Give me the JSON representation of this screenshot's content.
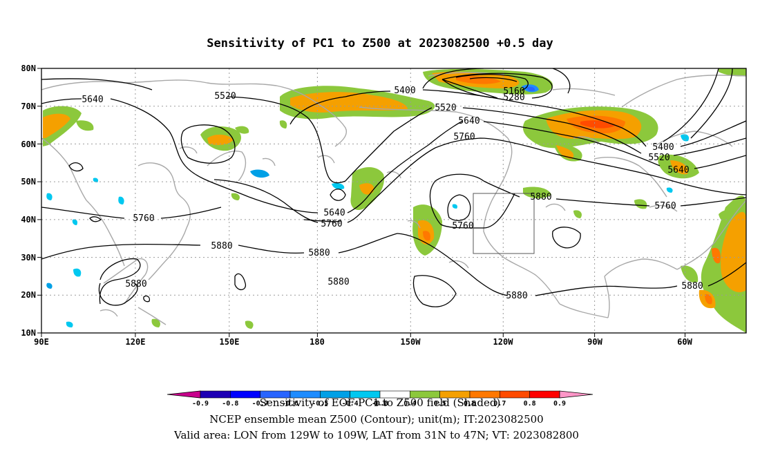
{
  "title": "Sensitivity of PC1 to Z500 at 2023082500 +0.5 day",
  "lat_axis": [
    "80N",
    "70N",
    "60N",
    "50N",
    "40N",
    "30N",
    "20N",
    "10N"
  ],
  "lon_axis": [
    "90E",
    "120E",
    "150E",
    "180",
    "150W",
    "120W",
    "90W",
    "60W"
  ],
  "contour_labels": [
    "5640",
    "5520",
    "5400",
    "5160",
    "5280",
    "5520",
    "5640",
    "5760",
    "5400",
    "5520",
    "5640",
    "5640",
    "5760",
    "5760",
    "5880",
    "5880",
    "5880",
    "5880",
    "5760",
    "5760",
    "5880",
    "5880",
    "5880"
  ],
  "colorbar": {
    "labels": [
      "-0.9",
      "-0.8",
      "-0.7",
      "-0.6",
      "-0.5",
      "-0.4",
      "-0.3",
      "0.3",
      "0.4",
      "0.5",
      "0.6",
      "0.7",
      "0.8",
      "0.9"
    ],
    "colors": [
      "#c8008c",
      "#1e00b4",
      "#0000ff",
      "#2864ff",
      "#1e8cff",
      "#00a0e6",
      "#00c8f0",
      "#ffffff",
      "#8cc83c",
      "#f5a000",
      "#ff7800",
      "#ff4b00",
      "#ff0000",
      "#ff96c8"
    ]
  },
  "footer": {
    "line1": "Sensitivity of EOF PC1 to Z500 field (Shaded)",
    "line2": "NCEP ensemble mean Z500 (Contour); unit(m); IT:2023082500",
    "line3": "Valid area: LON from 129W to 109W, LAT from 31N to 47N; VT: 2023082800"
  },
  "valid_area": {
    "lon_range": [
      "129W",
      "109W"
    ],
    "lat_range": [
      "31N",
      "47N"
    ]
  }
}
